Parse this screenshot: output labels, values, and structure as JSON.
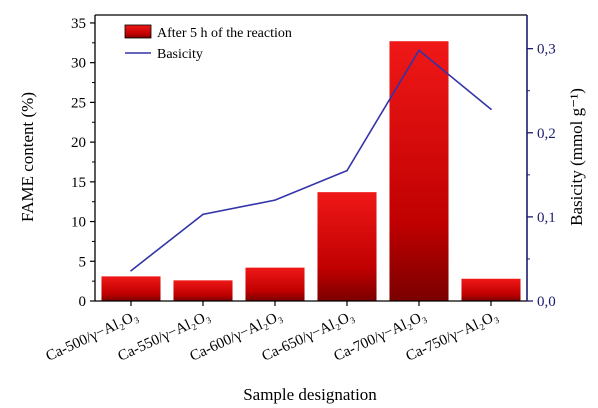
{
  "chart_data": {
    "type": "bar",
    "categories": [
      "Ca-500/γ−Al₂O₃",
      "Ca-550/γ−Al₂O₃",
      "Ca-600/γ−Al₂O₃",
      "Ca-650/γ−Al₂O₃",
      "Ca-700/γ−Al₂O₃",
      "Ca-750/γ−Al₂O₃"
    ],
    "series": [
      {
        "name": "After 5 h of the reaction",
        "axis": "left",
        "type": "bar",
        "values": [
          3.1,
          2.6,
          4.2,
          13.7,
          32.7,
          2.8
        ],
        "color": "#cc0000"
      },
      {
        "name": "Basicity",
        "axis": "right",
        "type": "line",
        "values": [
          0.036,
          0.103,
          0.12,
          0.155,
          0.298,
          0.228
        ],
        "color": "#3333aa"
      }
    ],
    "xlabel": "Sample designation",
    "ylabel_left": "FAME content (%)",
    "ylabel_right": "Basicity (mmol g⁻¹)",
    "ylim_left": [
      0,
      36
    ],
    "yticks_left": [
      0,
      5,
      10,
      15,
      20,
      25,
      30,
      35
    ],
    "ytick_labels_left": [
      "0",
      "5",
      "10",
      "15",
      "20",
      "25",
      "30",
      "35"
    ],
    "ylim_right": [
      0,
      0.34
    ],
    "yticks_right": [
      0,
      0.1,
      0.2,
      0.3
    ],
    "ytick_labels_right": [
      "0,0",
      "0,1",
      "0,2",
      "0,3"
    ],
    "legend_position": "top-left",
    "right_axis_color": "#1c1c6e"
  }
}
